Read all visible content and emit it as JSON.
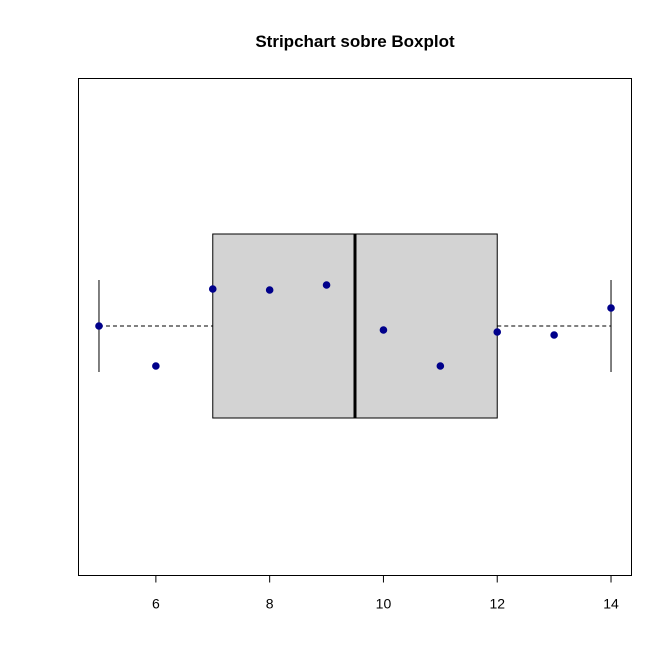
{
  "chart_data": {
    "type": "boxplot+stripchart",
    "orientation": "horizontal",
    "title": "Stripchart sobre Boxplot",
    "xlabel": "",
    "ylabel": "",
    "xlim": [
      4.64,
      14.36
    ],
    "x_ticks": [
      6,
      8,
      10,
      12,
      14
    ],
    "x_tick_labels": [
      "6",
      "8",
      "10",
      "12",
      "14"
    ],
    "boxplot": {
      "min": 5,
      "q1": 7,
      "median": 9.5,
      "q3": 12,
      "max": 14,
      "box_fill": "#d3d3d3",
      "whisker_style": "dashed"
    },
    "stripchart": {
      "method": "jitter",
      "point_color": "#00008b",
      "points": [
        5,
        6,
        7,
        8,
        9,
        10,
        11,
        12,
        13,
        14
      ],
      "jitter": [
        0.0,
        -0.4,
        0.37,
        0.36,
        0.41,
        -0.04,
        -0.4,
        -0.06,
        -0.09,
        0.18
      ]
    }
  }
}
